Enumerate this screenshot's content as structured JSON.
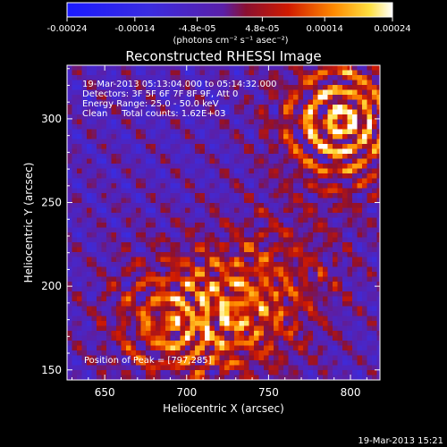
{
  "colorbar": {
    "tick_labels": [
      "-0.00024",
      "-0.00014",
      "-4.8e-05",
      "4.8e-05",
      "0.00014",
      "0.00024"
    ],
    "tick_values": [
      -0.00024,
      -0.00014,
      -4.8e-05,
      4.8e-05,
      0.00014,
      0.00024
    ],
    "range": [
      -0.00024,
      0.00024
    ],
    "unit_label": "(photons cm⁻² s⁻¹ asec⁻²)",
    "colormap": "blue-purple-red-yellow-white"
  },
  "annotations": {
    "time_range": "19-Mar-2013 05:13:04.000 to 05:14:32.000",
    "detectors": "Detectors: 3F 5F 6F 7F 8F 9F, Att 0",
    "energy_range": "Energy Range: 25.0 - 50.0 keV",
    "method_counts": "Clean     Total counts: 1.62E+03",
    "peak": "Position of Peak = [797,285]"
  },
  "footer": {
    "timestamp": "19-Mar-2013 15:21"
  },
  "colors": {
    "background": "#000000",
    "text": "#ffffff",
    "low": "#2a3cff",
    "mid": "#5a1fb0",
    "high": "#ffffff"
  },
  "chart_data": {
    "type": "heatmap",
    "title": "Reconstructed RHESSI Image",
    "xlabel": "Heliocentric X (arcsec)",
    "ylabel": "Heliocentric Y (arcsec)",
    "xlim": [
      627,
      818
    ],
    "ylim": [
      144,
      332
    ],
    "xticks": [
      650,
      700,
      750,
      800
    ],
    "yticks": [
      150,
      200,
      250,
      300
    ],
    "xtick_labels": [
      "650",
      "700",
      "750",
      "800"
    ],
    "ytick_labels": [
      "150",
      "200",
      "250",
      "300"
    ],
    "peak_position": [
      797,
      285
    ],
    "sources": [
      {
        "x": 795,
        "y": 300,
        "intensity": 0.00024
      },
      {
        "x": 690,
        "y": 180,
        "intensity": 0.00016
      },
      {
        "x": 730,
        "y": 185,
        "intensity": 0.00014
      },
      {
        "x": 760,
        "y": 210,
        "intensity": 8e-05
      }
    ]
  }
}
